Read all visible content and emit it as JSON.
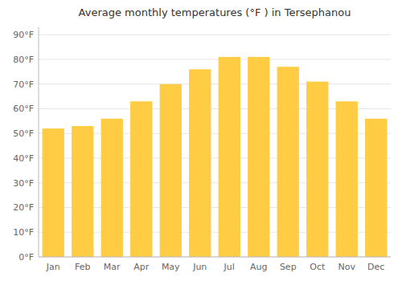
{
  "chart_data": {
    "type": "bar",
    "title": "Average monthly temperatures (°F ) in Tersephanou",
    "categories": [
      "Jan",
      "Feb",
      "Mar",
      "Apr",
      "May",
      "Jun",
      "Jul",
      "Aug",
      "Sep",
      "Oct",
      "Nov",
      "Dec"
    ],
    "values": [
      52,
      53,
      56,
      63,
      70,
      76,
      81,
      81,
      77,
      71,
      63,
      56
    ],
    "color": "#FFCC44",
    "ylim": [
      0,
      93
    ],
    "yticks": [
      {
        "value": 0,
        "label": "0°F"
      },
      {
        "value": 10,
        "label": "10°F"
      },
      {
        "value": 20,
        "label": "20°F"
      },
      {
        "value": 30,
        "label": "30°F"
      },
      {
        "value": 40,
        "label": "40°F"
      },
      {
        "value": 50,
        "label": "50°F"
      },
      {
        "value": 60,
        "label": "60°F"
      },
      {
        "value": 70,
        "label": "70°F"
      },
      {
        "value": 80,
        "label": "80°F"
      },
      {
        "value": 90,
        "label": "90°F"
      }
    ],
    "grid": true
  }
}
